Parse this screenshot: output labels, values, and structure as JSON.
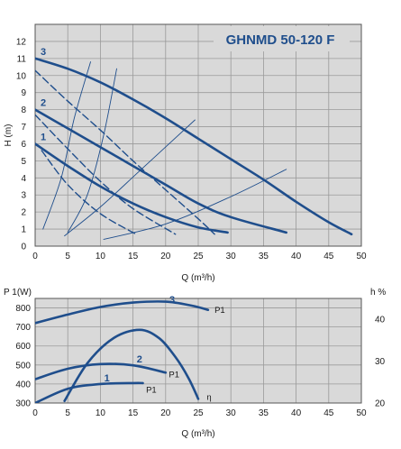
{
  "chart_data": [
    {
      "type": "line",
      "title": "GHNMD 50-120 F",
      "xlabel": "Q (m³/h)",
      "ylabel": "H (m)",
      "xlim": [
        0,
        50
      ],
      "ylim": [
        0,
        13
      ],
      "xticks": [
        "0",
        "5",
        "10",
        "15",
        "20",
        "25",
        "30",
        "35",
        "40",
        "45",
        "50"
      ],
      "yticks": [
        "0",
        "1",
        "2",
        "3",
        "4",
        "5",
        "6",
        "7",
        "8",
        "9",
        "10",
        "11",
        "12"
      ],
      "grid": true,
      "series": [
        {
          "name": "3",
          "style": "solid",
          "color": "#1f4e8c",
          "x": [
            0,
            5,
            10,
            15,
            20,
            25,
            30,
            35,
            40,
            45,
            48.5
          ],
          "y": [
            11.0,
            10.4,
            9.6,
            8.6,
            7.5,
            6.3,
            5.1,
            3.9,
            2.6,
            1.4,
            0.7
          ]
        },
        {
          "name": "2",
          "style": "solid",
          "color": "#1f4e8c",
          "x": [
            0,
            5,
            10,
            15,
            20,
            25,
            30,
            38.5
          ],
          "y": [
            8.0,
            6.9,
            5.8,
            4.7,
            3.6,
            2.5,
            1.7,
            0.8
          ]
        },
        {
          "name": "1",
          "style": "solid",
          "color": "#1f4e8c",
          "x": [
            0,
            5,
            10,
            15,
            20,
            25,
            29.5
          ],
          "y": [
            6.0,
            4.7,
            3.5,
            2.5,
            1.7,
            1.1,
            0.8
          ]
        },
        {
          "name": "",
          "style": "dashed",
          "color": "#1f4e8c",
          "x": [
            0,
            5,
            10,
            15,
            20,
            25,
            27.5
          ],
          "y": [
            10.3,
            8.5,
            6.8,
            5.0,
            3.3,
            1.6,
            0.7
          ]
        },
        {
          "name": "",
          "style": "dashed",
          "color": "#1f4e8c",
          "x": [
            0,
            5,
            10,
            15,
            21.5
          ],
          "y": [
            7.7,
            5.7,
            3.8,
            2.2,
            0.7
          ]
        },
        {
          "name": "",
          "style": "dashed",
          "color": "#1f4e8c",
          "x": [
            1,
            5,
            10,
            15.5
          ],
          "y": [
            5.6,
            3.6,
            1.9,
            0.7
          ]
        },
        {
          "name": "",
          "style": "thin",
          "color": "#1f4e8c",
          "x": [
            1.2,
            4,
            6,
            8.5
          ],
          "y": [
            1.0,
            4.0,
            7.5,
            10.8
          ]
        },
        {
          "name": "",
          "style": "thin",
          "color": "#1f4e8c",
          "x": [
            5,
            8,
            10.5,
            12.5
          ],
          "y": [
            0.8,
            3.0,
            6.5,
            10.4
          ]
        },
        {
          "name": "",
          "style": "thin",
          "color": "#1f4e8c",
          "x": [
            4.5,
            10,
            16,
            24.5
          ],
          "y": [
            0.6,
            2.3,
            4.4,
            7.4
          ]
        },
        {
          "name": "",
          "style": "thin",
          "color": "#1f4e8c",
          "x": [
            10.5,
            20,
            30,
            38.5
          ],
          "y": [
            0.4,
            1.3,
            2.9,
            4.5
          ]
        }
      ]
    },
    {
      "type": "line",
      "title": "",
      "xlabel": "Q (m³/h)",
      "ylabel": "P 1(W)",
      "y2label": "h %",
      "xlim": [
        0,
        50
      ],
      "ylim": [
        300,
        850
      ],
      "y2lim": [
        20,
        45
      ],
      "xticks": [
        "0",
        "5",
        "10",
        "15",
        "20",
        "25",
        "30",
        "35",
        "40",
        "45",
        "50"
      ],
      "yticks": [
        "300",
        "400",
        "500",
        "600",
        "700",
        "800"
      ],
      "y2ticks": [
        "20",
        "30",
        "40"
      ],
      "grid": true,
      "series": [
        {
          "name": "3",
          "axis": "left",
          "color": "#1f4e8c",
          "x": [
            0,
            5,
            10,
            15,
            20,
            24,
            26.5
          ],
          "y": [
            720,
            765,
            805,
            828,
            833,
            812,
            790
          ]
        },
        {
          "name": "2",
          "axis": "left",
          "color": "#1f4e8c",
          "x": [
            0,
            5,
            10,
            15,
            20
          ],
          "y": [
            425,
            480,
            505,
            498,
            460
          ]
        },
        {
          "name": "1",
          "axis": "left",
          "color": "#1f4e8c",
          "x": [
            0,
            5,
            10,
            15,
            16.5
          ],
          "y": [
            300,
            375,
            400,
            405,
            405
          ]
        },
        {
          "name": "η",
          "axis": "right",
          "color": "#1f4e8c",
          "x": [
            4.5,
            8,
            12,
            16,
            19,
            21.5,
            23.5,
            25
          ],
          "y": [
            20.5,
            29.5,
            35.5,
            37.5,
            35.5,
            31.0,
            26.0,
            21.0
          ]
        }
      ],
      "annotations": [
        {
          "text": "P1",
          "x": 27.5,
          "y": 790,
          "axis": "left"
        },
        {
          "text": "P1",
          "x": 20.5,
          "y": 452,
          "axis": "left"
        },
        {
          "text": "P1",
          "x": 17,
          "y": 370,
          "axis": "left"
        },
        {
          "text": "η",
          "x": 26.3,
          "y": 21.5,
          "axis": "right"
        }
      ]
    }
  ]
}
